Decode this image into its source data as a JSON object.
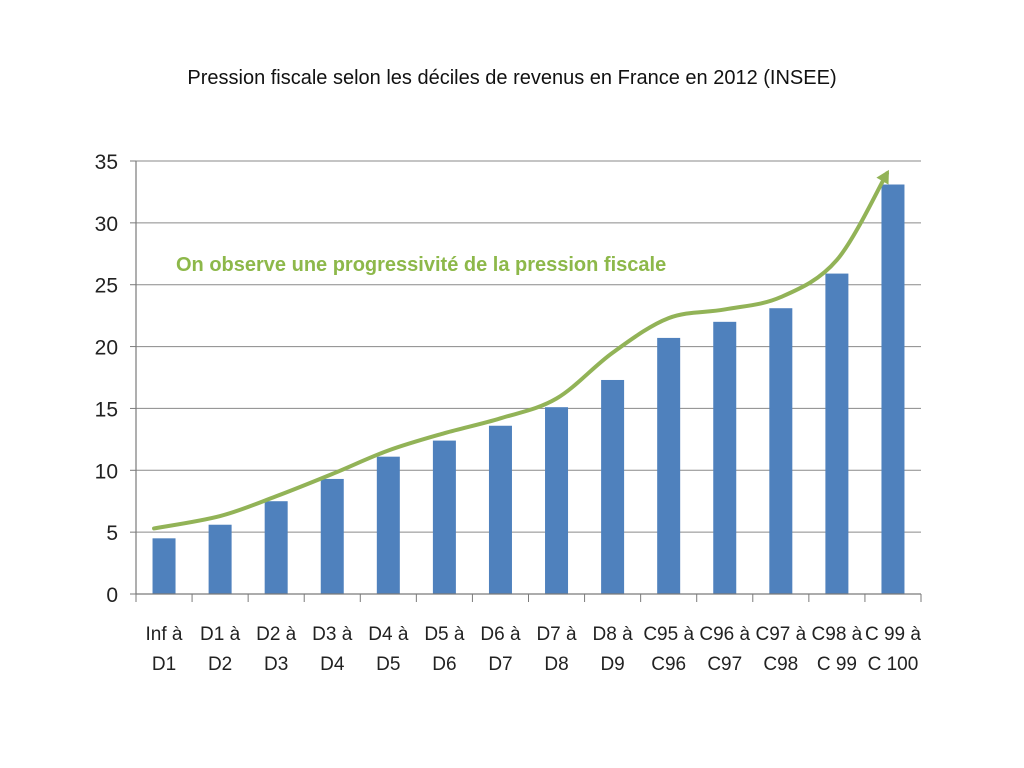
{
  "title": "Pression fiscale selon les déciles de revenus en France en 2012 (INSEE)",
  "colors": {
    "bar": "#4f81bd",
    "trend": "#92b357",
    "annotation": "#8db84a",
    "grid": "#8a8a8a",
    "axis": "#7a7a7a"
  },
  "chart_data": {
    "type": "bar",
    "title": "Pression fiscale selon les déciles de revenus en France en 2012 (INSEE)",
    "xlabel": "",
    "ylabel": "",
    "ylim": [
      0,
      35
    ],
    "yticks": [
      "0",
      "5",
      "10",
      "15",
      "20",
      "25",
      "30",
      "35"
    ],
    "grid": true,
    "legend": "none",
    "categories": [
      [
        "Inf à",
        "D1"
      ],
      [
        "D1 à",
        "D2"
      ],
      [
        "D2 à",
        "D3"
      ],
      [
        "D3 à",
        "D4"
      ],
      [
        "D4 à",
        "D5"
      ],
      [
        "D5 à",
        "D6"
      ],
      [
        "D6 à",
        "D7"
      ],
      [
        "D7 à",
        "D8"
      ],
      [
        "D8 à",
        "D9"
      ],
      [
        "C95 à",
        "C96"
      ],
      [
        "C96 à",
        "C97"
      ],
      [
        "C97 à",
        "C98"
      ],
      [
        "C98 à",
        "C 99"
      ],
      [
        "C 99 à",
        "C 100"
      ]
    ],
    "values": [
      4.5,
      5.6,
      7.5,
      9.3,
      11.1,
      12.4,
      13.6,
      15.1,
      17.3,
      20.7,
      22.0,
      23.1,
      25.9,
      33.1
    ],
    "trend_line": {
      "label": "On observe une progressivité de la pression fiscale",
      "values": [
        5.3,
        6.3,
        7.9,
        9.7,
        11.6,
        13.0,
        14.2,
        15.8,
        19.5,
        22.3,
        23.0,
        24.0,
        27.0,
        34.0
      ]
    }
  }
}
